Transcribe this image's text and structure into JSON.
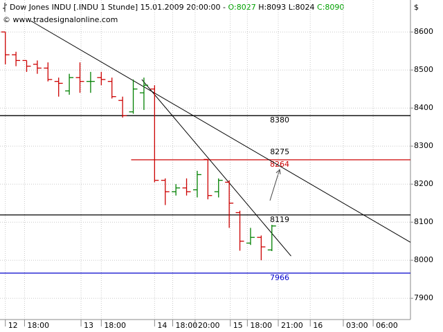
{
  "chart_data": {
    "type": "ohlc",
    "title": "Dow Jones INDU [.INDU  1 Stunde] 15.01.2009 20:00:00 -",
    "ohlc_labels": [
      "O:8027",
      "H:8093",
      "L:8024",
      "C:8090"
    ],
    "source": "© www.tradesignalonline.com",
    "currency": "$",
    "x": [
      0,
      1,
      2,
      3,
      4,
      5,
      6,
      7,
      8,
      9,
      10,
      11,
      12,
      13,
      14,
      15,
      16,
      17,
      18,
      19,
      20,
      21,
      22,
      23,
      24,
      25
    ],
    "open": [
      8600,
      8540,
      8525,
      8515,
      8505,
      8470,
      8445,
      8480,
      8470,
      8480,
      8470,
      8420,
      8390,
      8440,
      8450,
      8210,
      8180,
      8190,
      8185,
      8265,
      8180,
      8205,
      8125,
      8045,
      8060,
      8027
    ],
    "high": [
      8600,
      8548,
      8525,
      8525,
      8520,
      8480,
      8490,
      8520,
      8495,
      8495,
      8480,
      8430,
      8475,
      8480,
      8460,
      8215,
      8200,
      8215,
      8235,
      8265,
      8215,
      8210,
      8130,
      8085,
      8065,
      8093
    ],
    "low": [
      8515,
      8510,
      8495,
      8490,
      8470,
      8430,
      8435,
      8440,
      8440,
      8460,
      8425,
      8375,
      8385,
      8395,
      8205,
      8145,
      8170,
      8170,
      8165,
      8160,
      8165,
      8085,
      8025,
      8040,
      8000,
      8024
    ],
    "close": [
      8540,
      8525,
      8510,
      8505,
      8475,
      8465,
      8480,
      8470,
      8470,
      8475,
      8430,
      8380,
      8450,
      8460,
      8210,
      8180,
      8190,
      8180,
      8225,
      8170,
      8210,
      8150,
      8050,
      8060,
      8035,
      8090
    ],
    "up_color": "#008000",
    "down_color": "#cc0000",
    "xlim": [
      -0.5,
      38
    ],
    "xticks": [
      {
        "value": 0,
        "label": "12"
      },
      {
        "value": 1.8,
        "label": "18:00"
      },
      {
        "value": 7.1,
        "label": "13"
      },
      {
        "value": 9,
        "label": "18:00"
      },
      {
        "value": 14,
        "label": "14"
      },
      {
        "value": 15.7,
        "label": "18:00"
      },
      {
        "value": 17.8,
        "label": "20:00"
      },
      {
        "value": 21.1,
        "label": "15"
      },
      {
        "value": 22.7,
        "label": "18:00"
      },
      {
        "value": 25.6,
        "label": "21:00"
      },
      {
        "value": 28.6,
        "label": "16"
      },
      {
        "value": 31.7,
        "label": "03:00"
      },
      {
        "value": 34.5,
        "label": "06:00"
      }
    ],
    "ylim": [
      7844,
      8684
    ],
    "yticks": [
      7900,
      8000,
      8100,
      8200,
      8300,
      8400,
      8500,
      8600
    ],
    "grid": true,
    "levels": [
      {
        "value": 8380,
        "color": "#000000"
      },
      {
        "value": 8264,
        "color": "#cc0000",
        "from": 11.8
      },
      {
        "value": 8119,
        "color": "#000000"
      },
      {
        "value": 7966,
        "color": "#0000cc"
      }
    ],
    "trendlines": [
      {
        "x": [
          2.4,
          38
        ],
        "y": [
          8629,
          8047
        ],
        "label": 8275
      },
      {
        "x": [
          12.8,
          26.8
        ],
        "y": [
          8475,
          8011
        ]
      }
    ]
  }
}
